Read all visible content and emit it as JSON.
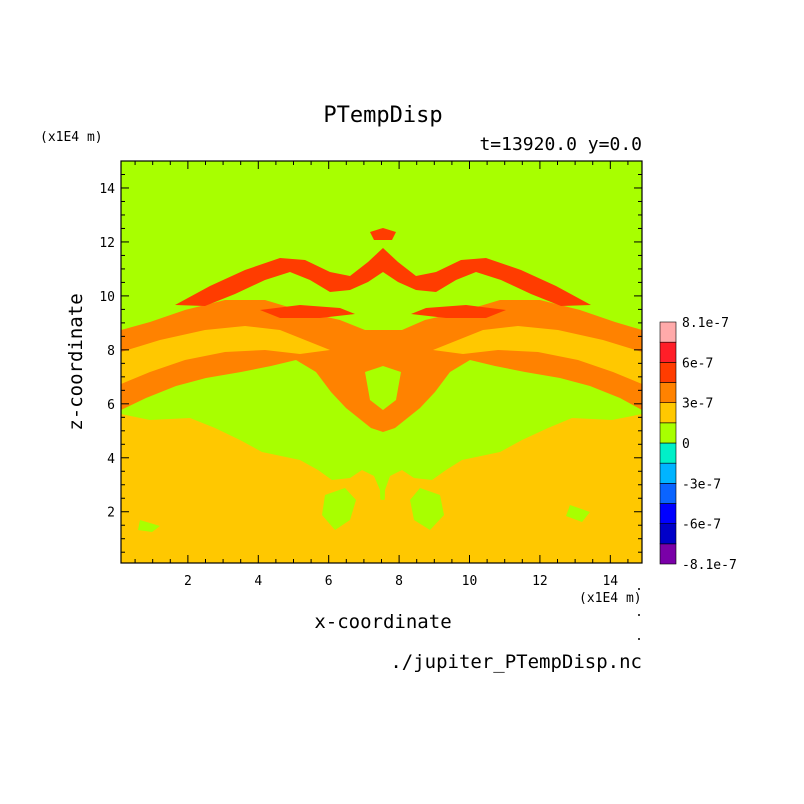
{
  "chart_data": {
    "type": "heatmap",
    "title": "PTempDisp",
    "subtitle": "t=13920.0 y=0.0",
    "xlabel": "x-coordinate",
    "ylabel": "z-coordinate",
    "x_unit": "(x1E4 m)",
    "y_unit": "(x1E4 m)",
    "xlim": [
      0.1,
      14.9
    ],
    "ylim": [
      0.1,
      15.0
    ],
    "x_ticks": [
      2,
      4,
      6,
      8,
      10,
      12,
      14
    ],
    "y_ticks": [
      2,
      4,
      6,
      8,
      10,
      12,
      14
    ],
    "source_file": "./jupiter_PTempDisp.nc",
    "colorbar": {
      "colors": [
        "#7a00a8",
        "#0000c8",
        "#0000ff",
        "#0a64ff",
        "#00b4ff",
        "#00f0c8",
        "#a8ff00",
        "#ffc800",
        "#ff8200",
        "#ff3c00",
        "#ff1e28",
        "#ffaaaa"
      ],
      "tick_labels": [
        "8.1e-7",
        "6e-7",
        "3e-7",
        "0",
        "-3e-7",
        "-6e-7",
        "-8.1e-7"
      ]
    },
    "bands_description": {
      "levels": [
        "0",
        "0..3e-7",
        "3e-7..6e-7",
        "6e-7..8.1e-7"
      ],
      "colors": [
        "#a8ff00",
        "#ffc800",
        "#ff8200",
        "#ff3c00"
      ]
    }
  }
}
